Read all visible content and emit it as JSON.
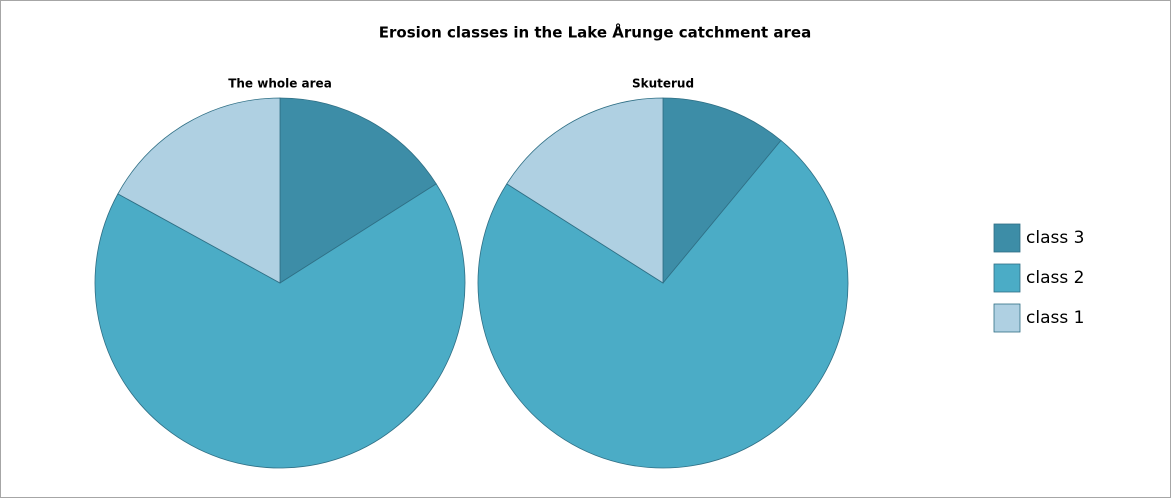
{
  "title": "Erosion classes in the Lake Årunge catchment area",
  "chart_data": [
    {
      "type": "pie",
      "title": "The whole area",
      "categories": [
        "class 3",
        "class 2",
        "class 1"
      ],
      "values": [
        16,
        67,
        17
      ],
      "colors": [
        "#3d8da7",
        "#4bacc6",
        "#afd0e2"
      ]
    },
    {
      "type": "pie",
      "title": "Skuterud",
      "categories": [
        "class 3",
        "class 2",
        "class 1"
      ],
      "values": [
        11,
        73,
        16
      ],
      "colors": [
        "#3d8da7",
        "#4bacc6",
        "#afd0e2"
      ]
    }
  ]
}
